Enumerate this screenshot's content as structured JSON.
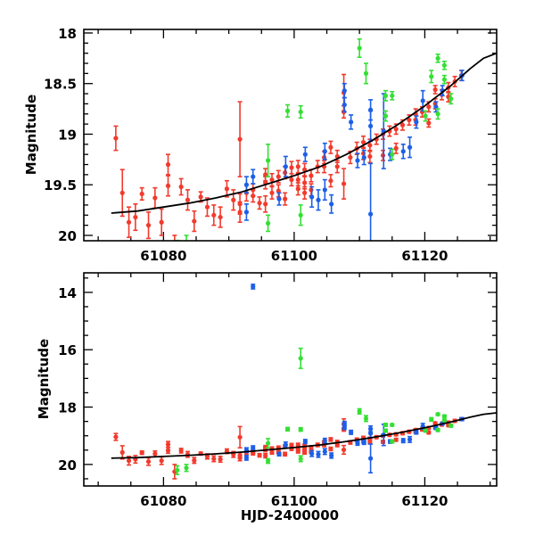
{
  "chart_data": [
    {
      "type": "scatter",
      "panel": "top",
      "ylabel": "Magnitude",
      "xlabel": "",
      "xlim": [
        61067.8,
        61131
      ],
      "ylim": [
        20.053,
        17.965
      ],
      "y_inverted": true,
      "xticks_major": [
        61080,
        61100,
        61120
      ],
      "xtick_labels": [
        "61080",
        "61100",
        "61120"
      ],
      "xticks_minor_step": 5,
      "yticks_major": [
        18,
        18.5,
        19,
        19.5,
        20
      ],
      "ytick_labels": [
        "18",
        "18.5",
        "19",
        "19.5",
        "20"
      ],
      "yticks_minor_step": 0.1
    },
    {
      "type": "scatter",
      "panel": "bottom",
      "ylabel": "Magnitude",
      "xlabel": "HJD-2400000",
      "xlim": [
        61067.8,
        61131
      ],
      "ylim": [
        20.75,
        13.32
      ],
      "y_inverted": true,
      "xticks_major": [
        61080,
        61100,
        61120
      ],
      "xtick_labels": [
        "61080",
        "61100",
        "61120"
      ],
      "xticks_minor_step": 5,
      "yticks_major": [
        14,
        16,
        18,
        20
      ],
      "ytick_labels": [
        "14",
        "16",
        "18",
        "20"
      ],
      "yticks_minor_step": 0.5
    }
  ],
  "series": [
    {
      "name": "red",
      "color": "#f23a2c",
      "points": [
        [
          61072.7,
          19.04,
          0.12
        ],
        [
          61073.7,
          19.58,
          0.23
        ],
        [
          61074.7,
          19.87,
          0.15
        ],
        [
          61075.7,
          19.82,
          0.13
        ],
        [
          61076.7,
          19.59,
          0.06
        ],
        [
          61077.7,
          19.9,
          0.13
        ],
        [
          61078.7,
          19.63,
          0.1
        ],
        [
          61079.7,
          19.87,
          0.13
        ],
        [
          61080.7,
          19.3,
          0.1
        ],
        [
          61080.7,
          19.51,
          0.1
        ],
        [
          61081.7,
          20.25,
          0.25
        ],
        [
          61082.7,
          19.52,
          0.08
        ],
        [
          61083.7,
          19.65,
          0.1
        ],
        [
          61084.7,
          19.86,
          0.1
        ],
        [
          61085.7,
          19.62,
          0.05
        ],
        [
          61086.7,
          19.72,
          0.09
        ],
        [
          61087.7,
          19.8,
          0.1
        ],
        [
          61088.7,
          19.82,
          0.1
        ],
        [
          61089.7,
          19.54,
          0.08
        ],
        [
          61090.7,
          19.65,
          0.1
        ],
        [
          61091.7,
          19.05,
          0.37
        ],
        [
          61091.7,
          19.69,
          0.1
        ],
        [
          61091.7,
          19.77,
          0.1
        ],
        [
          61092.7,
          19.58,
          0.08
        ],
        [
          61093.7,
          19.55,
          0.06
        ],
        [
          61093.7,
          19.61,
          0.06
        ],
        [
          61094.7,
          19.68,
          0.06
        ],
        [
          61095.6,
          19.4,
          0.06
        ],
        [
          61095.6,
          19.48,
          0.06
        ],
        [
          61095.6,
          19.69,
          0.08
        ],
        [
          61096.6,
          19.45,
          0.06
        ],
        [
          61096.6,
          19.58,
          0.06
        ],
        [
          61097.6,
          19.42,
          0.06
        ],
        [
          61097.6,
          19.56,
          0.06
        ],
        [
          61098.6,
          19.38,
          0.06
        ],
        [
          61098.6,
          19.64,
          0.06
        ],
        [
          61099.6,
          19.33,
          0.06
        ],
        [
          61099.6,
          19.45,
          0.06
        ],
        [
          61100.6,
          19.32,
          0.06
        ],
        [
          61100.6,
          19.45,
          0.06
        ],
        [
          61100.6,
          19.54,
          0.06
        ],
        [
          61101.6,
          19.35,
          0.06
        ],
        [
          61101.6,
          19.48,
          0.06
        ],
        [
          61101.6,
          19.58,
          0.06
        ],
        [
          61102.6,
          19.41,
          0.06
        ],
        [
          61102.6,
          19.55,
          0.06
        ],
        [
          61103.6,
          19.32,
          0.06
        ],
        [
          61104.6,
          19.23,
          0.06
        ],
        [
          61104.6,
          19.32,
          0.06
        ],
        [
          61105.6,
          19.13,
          0.06
        ],
        [
          61105.6,
          19.46,
          0.06
        ],
        [
          61106.6,
          19.22,
          0.06
        ],
        [
          61106.6,
          19.32,
          0.06
        ],
        [
          61107.6,
          18.59,
          0.18
        ],
        [
          61107.6,
          18.78,
          0.06
        ],
        [
          61107.6,
          19.49,
          0.15
        ],
        [
          61108.6,
          19.23,
          0.06
        ],
        [
          61109.6,
          19.14,
          0.06
        ],
        [
          61110.6,
          19.19,
          0.06
        ],
        [
          61110.6,
          19.08,
          0.06
        ],
        [
          61111.6,
          19.11,
          0.06
        ],
        [
          61111.6,
          19.22,
          0.06
        ],
        [
          61112.6,
          19.05,
          0.05
        ],
        [
          61113.6,
          19.0,
          0.05
        ],
        [
          61113.6,
          19.21,
          0.05
        ],
        [
          61114.6,
          18.97,
          0.05
        ],
        [
          61115.6,
          18.95,
          0.05
        ],
        [
          61115.6,
          19.14,
          0.05
        ],
        [
          61116.6,
          18.91,
          0.05
        ],
        [
          61117.6,
          18.86,
          0.05
        ],
        [
          61118.6,
          18.8,
          0.05
        ],
        [
          61118.6,
          18.86,
          0.05
        ],
        [
          61119.6,
          18.78,
          0.05
        ],
        [
          61120.6,
          18.73,
          0.05
        ],
        [
          61120.6,
          18.89,
          0.04
        ],
        [
          61121.6,
          18.7,
          0.05
        ],
        [
          61121.6,
          18.56,
          0.04
        ],
        [
          61122.6,
          18.61,
          0.05
        ],
        [
          61123.6,
          18.54,
          0.05
        ],
        [
          61123.6,
          18.63,
          0.05
        ],
        [
          61124.6,
          18.48,
          0.05
        ],
        [
          61125.6,
          18.42,
          0.05
        ]
      ]
    },
    {
      "name": "blue",
      "color": "#1c5fe8",
      "points": [
        [
          61092.7,
          19.5,
          0.08
        ],
        [
          61092.7,
          19.77,
          0.08
        ],
        [
          61093.7,
          19.42,
          0.07
        ],
        [
          61093.7,
          13.8,
          0.08
        ],
        [
          61097.7,
          19.64,
          0.06
        ],
        [
          61098.7,
          19.32,
          0.1
        ],
        [
          61101.7,
          19.2,
          0.07
        ],
        [
          61102.7,
          19.62,
          0.1
        ],
        [
          61103.7,
          19.65,
          0.1
        ],
        [
          61104.7,
          19.17,
          0.08
        ],
        [
          61104.7,
          19.55,
          0.1
        ],
        [
          61105.7,
          19.69,
          0.09
        ],
        [
          61107.7,
          18.57,
          0.07
        ],
        [
          61107.7,
          18.71,
          0.07
        ],
        [
          61108.7,
          18.88,
          0.07
        ],
        [
          61109.7,
          19.26,
          0.07
        ],
        [
          61110.7,
          19.23,
          0.07
        ],
        [
          61111.7,
          18.76,
          0.1
        ],
        [
          61111.7,
          18.92,
          0.15
        ],
        [
          61111.7,
          19.79,
          0.5
        ],
        [
          61113.7,
          18.97,
          0.37
        ],
        [
          61114.7,
          19.2,
          0.06
        ],
        [
          61116.7,
          19.17,
          0.07
        ],
        [
          61117.7,
          19.13,
          0.1
        ],
        [
          61118.7,
          18.88,
          0.06
        ],
        [
          61119.7,
          18.67,
          0.1
        ],
        [
          61121.7,
          18.73,
          0.05
        ],
        [
          61122.7,
          18.57,
          0.05
        ],
        [
          61125.7,
          18.42,
          0.05
        ]
      ]
    },
    {
      "name": "green",
      "color": "#33e033",
      "points": [
        [
          61082.1,
          20.2,
          0.15
        ],
        [
          61083.5,
          20.12,
          0.12
        ],
        [
          61096.0,
          19.26,
          0.16
        ],
        [
          61096.0,
          19.88,
          0.08
        ],
        [
          61099.0,
          18.77,
          0.06
        ],
        [
          61101.0,
          18.78,
          0.06
        ],
        [
          61101.0,
          19.8,
          0.1
        ],
        [
          61101.0,
          16.3,
          0.35
        ],
        [
          61110.0,
          18.15,
          0.09
        ],
        [
          61111.0,
          18.4,
          0.1
        ],
        [
          61114.0,
          18.62,
          0.05
        ],
        [
          61115.0,
          18.62,
          0.04
        ],
        [
          61114.0,
          18.82,
          0.05
        ],
        [
          61115.0,
          19.2,
          0.05
        ],
        [
          61120.1,
          18.82,
          0.05
        ],
        [
          61121.0,
          18.43,
          0.06
        ],
        [
          61122.0,
          18.25,
          0.04
        ],
        [
          61122.0,
          18.8,
          0.05
        ],
        [
          61123.0,
          18.32,
          0.04
        ],
        [
          61123.0,
          18.46,
          0.04
        ],
        [
          61124.0,
          18.65,
          0.05
        ]
      ]
    }
  ],
  "fit_curve": {
    "color": "#000000",
    "x": [
      61072,
      61076,
      61080,
      61084,
      61088,
      61092,
      61096,
      61100,
      61104,
      61108,
      61112,
      61116,
      61120,
      61124,
      61127,
      61129,
      61131
    ],
    "y": [
      19.78,
      19.76,
      19.72,
      19.68,
      19.63,
      19.57,
      19.49,
      19.41,
      19.32,
      19.2,
      19.06,
      18.9,
      18.72,
      18.52,
      18.35,
      18.25,
      18.2
    ]
  }
}
